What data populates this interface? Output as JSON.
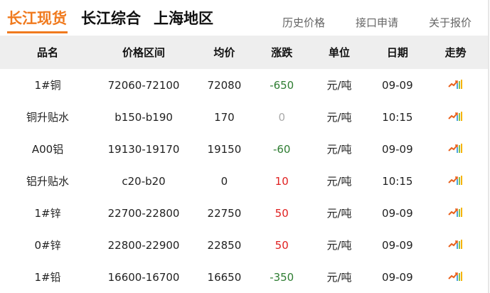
{
  "tabs": [
    "长江现货",
    "长江综合",
    "上海地区"
  ],
  "links": [
    "历史价格",
    "接口申请",
    "关于报价"
  ],
  "columns": [
    "品名",
    "价格区间",
    "均价",
    "涨跌",
    "单位",
    "日期",
    "走势"
  ],
  "colors": {
    "accent": "#f07a1e",
    "down": "#2e7d32",
    "up": "#e02020",
    "flat": "#aaaaaa"
  },
  "rows": [
    {
      "name": "1#铜",
      "range": "72060-72100",
      "avg": "72080",
      "change": "-650",
      "unit": "元/吨",
      "date": "09-09",
      "trend": "trend-chart-icon"
    },
    {
      "name": "铜升贴水",
      "range": "b150-b190",
      "avg": "170",
      "change": "0",
      "unit": "元/吨",
      "date": "10:15",
      "trend": "trend-chart-icon"
    },
    {
      "name": "A00铝",
      "range": "19130-19170",
      "avg": "19150",
      "change": "-60",
      "unit": "元/吨",
      "date": "09-09",
      "trend": "trend-chart-icon"
    },
    {
      "name": "铝升贴水",
      "range": "c20-b20",
      "avg": "0",
      "change": "10",
      "unit": "元/吨",
      "date": "10:15",
      "trend": "trend-chart-icon"
    },
    {
      "name": "1#锌",
      "range": "22700-22800",
      "avg": "22750",
      "change": "50",
      "unit": "元/吨",
      "date": "09-09",
      "trend": "trend-chart-icon"
    },
    {
      "name": "0#锌",
      "range": "22800-22900",
      "avg": "22850",
      "change": "50",
      "unit": "元/吨",
      "date": "09-09",
      "trend": "trend-chart-icon"
    },
    {
      "name": "1#铅",
      "range": "16600-16700",
      "avg": "16650",
      "change": "-350",
      "unit": "元/吨",
      "date": "09-09",
      "trend": "trend-chart-icon"
    }
  ]
}
